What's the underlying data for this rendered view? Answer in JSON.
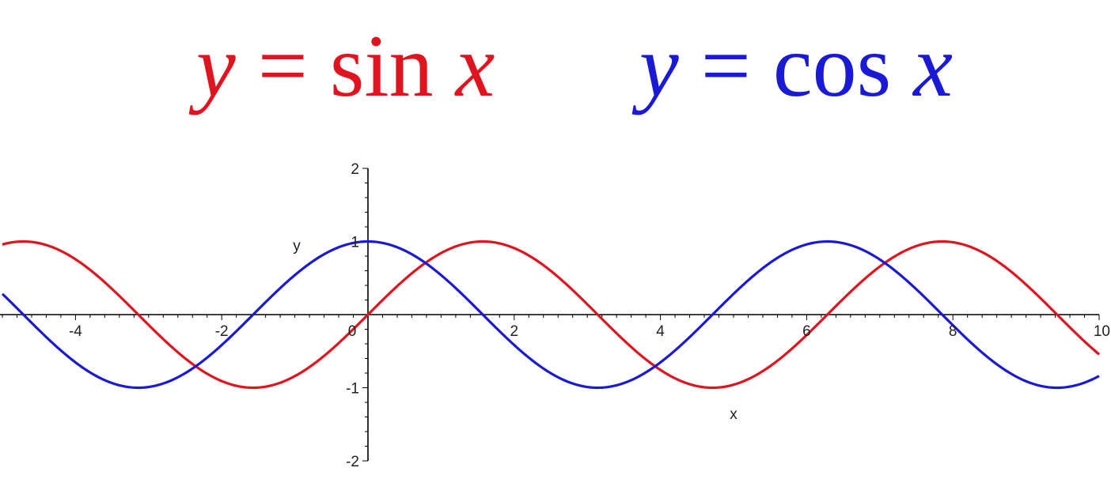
{
  "titles": [
    {
      "y": "y",
      "eq": "=",
      "fn": "sin",
      "x": "x",
      "color": "#e0141e"
    },
    {
      "y": "y",
      "eq": "=",
      "fn": "cos",
      "x": "x",
      "color": "#1a1ad6"
    }
  ],
  "chart_data": {
    "type": "line",
    "title": "",
    "xlabel": "x",
    "ylabel": "y",
    "xlim": [
      -5,
      10
    ],
    "ylim": [
      -2,
      2
    ],
    "x_ticks": [
      -4,
      -2,
      0,
      2,
      4,
      6,
      8,
      10
    ],
    "x_tick_labels": [
      "-4",
      "-2",
      "0",
      "2",
      "4",
      "6",
      "8",
      "10"
    ],
    "y_ticks": [
      -2,
      -1,
      1,
      2
    ],
    "y_tick_labels": [
      "-2",
      "-1",
      "1",
      "2"
    ],
    "grid": false,
    "series": [
      {
        "function": "sin",
        "color": "#e0141e",
        "x": [
          -5,
          -4.71,
          -4,
          -3.14,
          -2.5,
          -1.57,
          -0.5,
          0,
          0.79,
          1.57,
          2.5,
          3.14,
          4,
          4.71,
          5.5,
          6.28,
          7.07,
          7.85,
          8.64,
          9.42,
          10
        ],
        "y": [
          0.96,
          1,
          0.76,
          0,
          -0.6,
          -1,
          -0.48,
          0,
          0.71,
          1,
          0.6,
          0,
          -0.76,
          -1,
          -0.71,
          0,
          0.71,
          1,
          0.71,
          0,
          -0.54
        ]
      },
      {
        "function": "cos",
        "color": "#1a1ad6",
        "x": [
          -5,
          -4.71,
          -3.93,
          -3.14,
          -2.36,
          -1.57,
          -0.79,
          0,
          0.79,
          1.57,
          2.36,
          3.14,
          3.93,
          4.71,
          5.5,
          6.28,
          7.07,
          7.85,
          8.64,
          9.42,
          10
        ],
        "y": [
          0.28,
          0,
          -0.71,
          -1,
          -0.71,
          0,
          0.71,
          1,
          0.71,
          0,
          -0.71,
          -1,
          -0.71,
          0,
          0.71,
          1,
          0.71,
          0,
          -0.71,
          -1,
          -0.84
        ]
      }
    ]
  }
}
